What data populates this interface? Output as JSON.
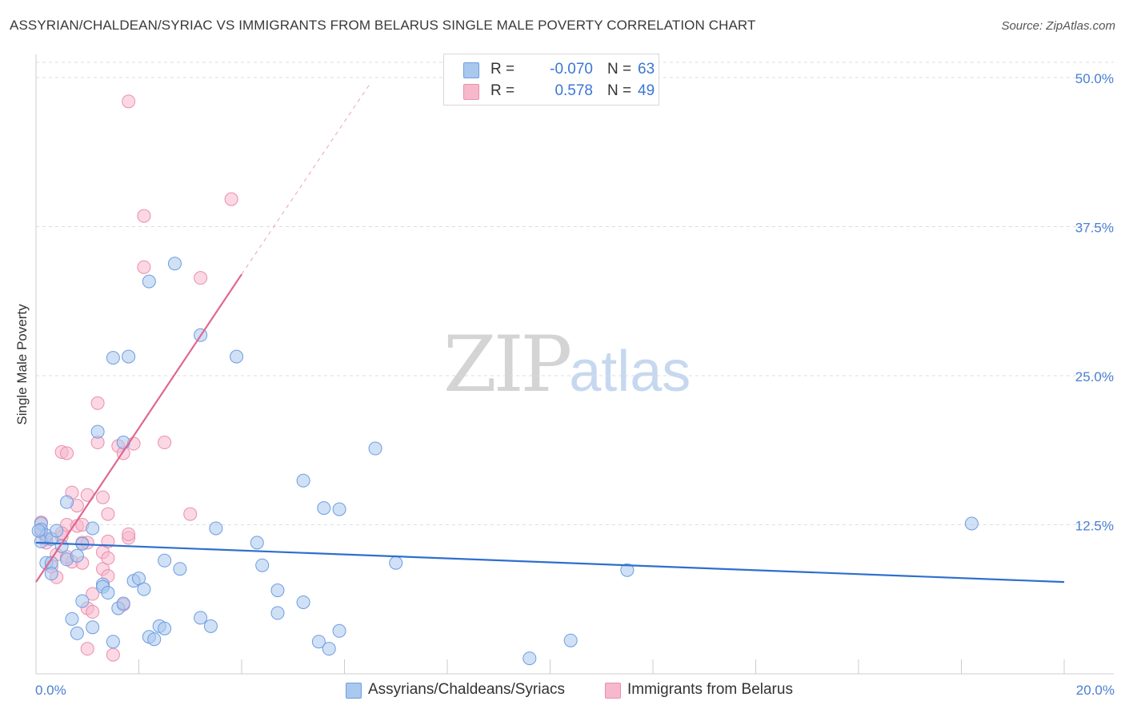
{
  "title": "ASSYRIAN/CHALDEAN/SYRIAC VS IMMIGRANTS FROM BELARUS SINGLE MALE POVERTY CORRELATION CHART",
  "source": "Source: ZipAtlas.com",
  "watermark": {
    "zip": "ZIP",
    "atlas": "atlas"
  },
  "legend": {
    "rows": [
      {
        "r_label": "R =",
        "r_value": "-0.070",
        "n_label": "N =",
        "n_value": "63"
      },
      {
        "r_label": "R =",
        "r_value": "0.578",
        "n_label": "N =",
        "n_value": "49"
      }
    ]
  },
  "bottom_legend": [
    "Assyrians/Chaldeans/Syriacs",
    "Immigrants from Belarus"
  ],
  "colors": {
    "blue_fill": "#a9c8ee",
    "blue_stroke": "#6d9de0",
    "blue_line": "#2e6fcf",
    "pink_fill": "#f7b8cc",
    "pink_stroke": "#ea8fad",
    "pink_line": "#e06690",
    "tick_text": "#4a7fd1",
    "grid": "#dddddd"
  },
  "chart_data": {
    "type": "scatter",
    "title": "ASSYRIAN/CHALDEAN/SYRIAC VS IMMIGRANTS FROM BELARUS SINGLE MALE POVERTY CORRELATION CHART",
    "xlabel": "",
    "ylabel": "Single Male Poverty",
    "xlim": [
      0,
      20
    ],
    "ylim": [
      0,
      50
    ],
    "x_tick_labels": [
      "0.0%",
      "20.0%"
    ],
    "y_ticks": [
      12.5,
      25.0,
      37.5,
      50.0
    ],
    "y_tick_labels": [
      "12.5%",
      "25.0%",
      "37.5%",
      "50.0%"
    ],
    "grid": true,
    "series": [
      {
        "name": "Assyrians/Chaldeans/Syriacs",
        "R": -0.07,
        "N": 63,
        "trend": {
          "x": [
            0,
            20
          ],
          "y": [
            11.0,
            7.7
          ]
        },
        "points": [
          [
            0.1,
            12.6
          ],
          [
            0.1,
            12.1
          ],
          [
            0.2,
            11.6
          ],
          [
            0.1,
            11.1
          ],
          [
            0.2,
            9.3
          ],
          [
            0.3,
            11.3
          ],
          [
            0.3,
            9.3
          ],
          [
            0.3,
            8.4
          ],
          [
            0.4,
            12.0
          ],
          [
            0.5,
            10.7
          ],
          [
            0.6,
            14.4
          ],
          [
            0.6,
            9.6
          ],
          [
            0.7,
            4.6
          ],
          [
            0.8,
            3.4
          ],
          [
            0.8,
            9.9
          ],
          [
            0.9,
            6.1
          ],
          [
            0.9,
            10.9
          ],
          [
            1.1,
            3.9
          ],
          [
            1.1,
            12.2
          ],
          [
            1.2,
            20.3
          ],
          [
            1.3,
            7.5
          ],
          [
            1.3,
            7.3
          ],
          [
            1.4,
            6.8
          ],
          [
            1.5,
            26.5
          ],
          [
            1.5,
            2.7
          ],
          [
            1.6,
            5.5
          ],
          [
            1.7,
            5.9
          ],
          [
            1.7,
            19.4
          ],
          [
            1.8,
            26.6
          ],
          [
            1.9,
            7.8
          ],
          [
            2.0,
            8.0
          ],
          [
            2.1,
            7.1
          ],
          [
            2.2,
            3.1
          ],
          [
            2.2,
            32.9
          ],
          [
            2.3,
            2.9
          ],
          [
            2.4,
            4.0
          ],
          [
            2.5,
            9.5
          ],
          [
            2.5,
            3.8
          ],
          [
            2.7,
            34.4
          ],
          [
            2.8,
            8.8
          ],
          [
            3.2,
            4.7
          ],
          [
            3.2,
            28.4
          ],
          [
            3.4,
            4.0
          ],
          [
            3.5,
            12.2
          ],
          [
            3.9,
            26.6
          ],
          [
            4.3,
            11.0
          ],
          [
            4.4,
            9.1
          ],
          [
            4.7,
            7.0
          ],
          [
            4.7,
            5.1
          ],
          [
            5.2,
            6.0
          ],
          [
            5.2,
            16.2
          ],
          [
            5.5,
            2.7
          ],
          [
            5.6,
            13.9
          ],
          [
            5.7,
            2.1
          ],
          [
            5.9,
            13.8
          ],
          [
            5.9,
            3.6
          ],
          [
            6.6,
            18.9
          ],
          [
            7.0,
            9.3
          ],
          [
            9.6,
            1.3
          ],
          [
            10.4,
            2.8
          ],
          [
            11.5,
            8.7
          ],
          [
            18.2,
            12.6
          ],
          [
            0.05,
            12.0
          ]
        ]
      },
      {
        "name": "Immigrants from Belarus",
        "R": 0.578,
        "N": 49,
        "trend": {
          "x": [
            0,
            4.0
          ],
          "y": [
            7.7,
            33.5
          ]
        },
        "trend_extension": {
          "x": [
            4.0,
            6.5
          ],
          "y": [
            33.5,
            49.5
          ]
        },
        "points": [
          [
            0.1,
            12.7
          ],
          [
            0.1,
            11.9
          ],
          [
            0.2,
            11.3
          ],
          [
            0.2,
            11.0
          ],
          [
            0.3,
            9.0
          ],
          [
            0.4,
            8.1
          ],
          [
            0.4,
            10.0
          ],
          [
            0.5,
            18.6
          ],
          [
            0.5,
            11.5
          ],
          [
            0.6,
            18.5
          ],
          [
            0.6,
            12.5
          ],
          [
            0.7,
            15.2
          ],
          [
            0.7,
            9.4
          ],
          [
            0.8,
            14.1
          ],
          [
            0.8,
            12.4
          ],
          [
            0.9,
            11.0
          ],
          [
            0.9,
            9.3
          ],
          [
            1.0,
            15.0
          ],
          [
            1.0,
            11.0
          ],
          [
            1.0,
            5.5
          ],
          [
            1.0,
            2.1
          ],
          [
            1.1,
            6.7
          ],
          [
            1.2,
            19.4
          ],
          [
            1.2,
            22.7
          ],
          [
            1.3,
            8.8
          ],
          [
            1.3,
            10.2
          ],
          [
            1.3,
            14.8
          ],
          [
            1.4,
            8.2
          ],
          [
            1.4,
            9.7
          ],
          [
            1.4,
            13.4
          ],
          [
            1.4,
            11.1
          ],
          [
            1.5,
            1.6
          ],
          [
            1.6,
            19.1
          ],
          [
            1.7,
            5.8
          ],
          [
            1.7,
            18.5
          ],
          [
            1.8,
            11.4
          ],
          [
            1.8,
            11.7
          ],
          [
            1.8,
            48.0
          ],
          [
            1.9,
            19.3
          ],
          [
            2.1,
            38.4
          ],
          [
            2.1,
            34.1
          ],
          [
            2.5,
            19.4
          ],
          [
            3.0,
            13.4
          ],
          [
            3.2,
            33.2
          ],
          [
            3.8,
            39.8
          ],
          [
            0.5,
            11.8
          ],
          [
            0.6,
            9.8
          ],
          [
            0.9,
            12.5
          ],
          [
            1.1,
            5.2
          ]
        ]
      }
    ]
  }
}
